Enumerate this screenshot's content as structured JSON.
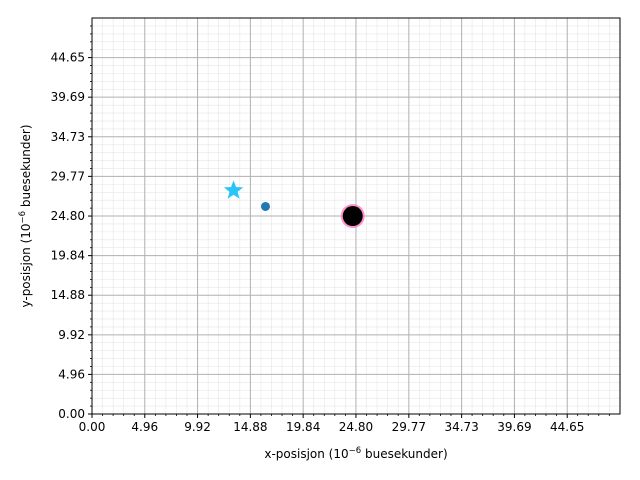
{
  "chart_data": {
    "type": "scatter",
    "xlabel": {
      "prefix": "x-posisjon (10",
      "exponent": "−6",
      "suffix": " buesekunder)"
    },
    "ylabel": {
      "prefix": "y-posisjon (10",
      "exponent": "−6",
      "suffix": " buesekunder)"
    },
    "xlim": [
      0,
      49.61
    ],
    "ylim": [
      0,
      49.61
    ],
    "xticks": [
      0.0,
      4.96,
      9.92,
      14.88,
      19.84,
      24.8,
      29.77,
      34.73,
      39.69,
      44.65
    ],
    "yticks": [
      0.0,
      4.96,
      9.92,
      14.88,
      19.84,
      24.8,
      29.77,
      34.73,
      39.69,
      44.65
    ],
    "xtick_labels": [
      "0.00",
      "4.96",
      "9.92",
      "14.88",
      "19.84",
      "24.80",
      "29.77",
      "34.73",
      "39.69",
      "44.65"
    ],
    "ytick_labels": [
      "0.00",
      "4.96",
      "9.92",
      "14.88",
      "19.84",
      "24.80",
      "29.77",
      "34.73",
      "39.69",
      "44.65"
    ],
    "grid": {
      "major": true,
      "minor": true
    },
    "points": [
      {
        "x": 13.3,
        "y": 28.0,
        "marker": "star",
        "color": "#29c5f6"
      },
      {
        "x": 16.3,
        "y": 26.0,
        "marker": "circle",
        "color": "#1f77b4"
      },
      {
        "x": 24.5,
        "y": 24.8,
        "marker": "black-hole",
        "color": "#000000",
        "ring_color": "#ff80c0"
      }
    ]
  }
}
